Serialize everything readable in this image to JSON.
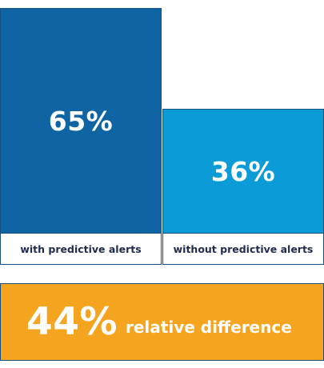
{
  "chart_data": {
    "type": "bar",
    "categories": [
      "with predictive alerts",
      "without predictive alerts"
    ],
    "values": [
      65,
      36
    ],
    "value_labels": [
      "65%",
      "36%"
    ],
    "title": "",
    "xlabel": "",
    "ylabel": "",
    "ylim": [
      0,
      65
    ],
    "colors": [
      "#0f65a3",
      "#0b9bd7"
    ]
  },
  "summary": {
    "value": "44%",
    "text": "relative difference",
    "color": "#f5a41f"
  }
}
